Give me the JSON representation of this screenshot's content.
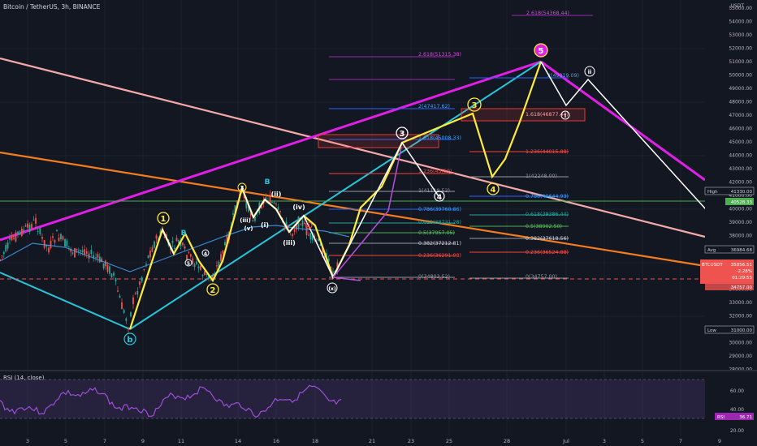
{
  "header": {
    "title": "Bitcoin / TetherUS, 3h, BINANCE"
  },
  "price_axis": {
    "currency": "USDT",
    "labels": [
      "55000.00",
      "54000.00",
      "53000.00",
      "52000.00",
      "51000.00",
      "50000.00",
      "49000.00",
      "48000.00",
      "47000.00",
      "46000.00",
      "45000.00",
      "44000.00",
      "43000.00",
      "42000.00",
      "41000.00",
      "40000.00",
      "39000.00",
      "38000.00",
      "37000.00",
      "36000.00",
      "35000.00",
      "34000.00",
      "33000.00",
      "32000.00",
      "31000.00",
      "30000.00",
      "29000.00",
      "28000.00"
    ],
    "badges": {
      "high_label": "High",
      "high_value": "41330.00",
      "green_value": "40528.33",
      "avg_label": "Avg",
      "avg_value": "36984.68",
      "symbol": "BTCUSDT",
      "last_price": "35856.51",
      "change": "-2.28%",
      "countdown": "01:29:55",
      "alt_price": "34757.00",
      "low_label": "Low",
      "low_value": "31000.00"
    }
  },
  "time_axis": {
    "labels": [
      "3",
      "5",
      "7",
      "9",
      "11",
      "14",
      "16",
      "18",
      "21",
      "23",
      "25",
      "28",
      "Jul",
      "3",
      "5",
      "7",
      "9"
    ]
  },
  "fib_labels": {
    "f1": "2.618(54368.44)",
    "f2": "2.618(51315.38)",
    "f3": "2(49819.09)",
    "f4": "2(47417.62)",
    "f5": "1.618(46877.44)",
    "f6": "1.618(45008.33)",
    "f7": "1.236(44015.88)",
    "f8": "1.236(43(59)",
    "f9": "1(42248.00)",
    "f10": "1(41119.52)",
    "f11": "0.786(40644.93)",
    "f12": "0.786(39760.86)",
    "f13": "0.618(39386.44)",
    "f14": "0.618(38731.28)",
    "f15": "0.5(38902.50)",
    "f16": "0.5(37957.05)",
    "f17": "0.382(37618.56)",
    "f18": "0.382(37212.81)",
    "f19": "0.236(36524.88)",
    "f20": "0.236(36291.98)",
    "f21": "0(34757.00)",
    "f22": "0(34803.52)"
  },
  "waves": {
    "w1": "1",
    "w2": "2",
    "w3": "3",
    "w4": "4",
    "w5": "5",
    "wb_small": "B",
    "wb_big": "B",
    "wb_low": "b",
    "wi": "i",
    "wii": "ii",
    "wiii": "iii",
    "w_i": "(i)",
    "w_ii": "(ii)",
    "w_iii": "(iii)",
    "w_iv": "(iv)",
    "w_v": "(v)",
    "w_x": "(x)",
    "w_3": "3",
    "w_4": "4",
    "w_5": "5"
  },
  "rsi": {
    "title": "RSI (14, close)",
    "levels": [
      "60.00",
      "40.00",
      "20.00"
    ],
    "label": "RSI",
    "value": "36.71"
  }
}
